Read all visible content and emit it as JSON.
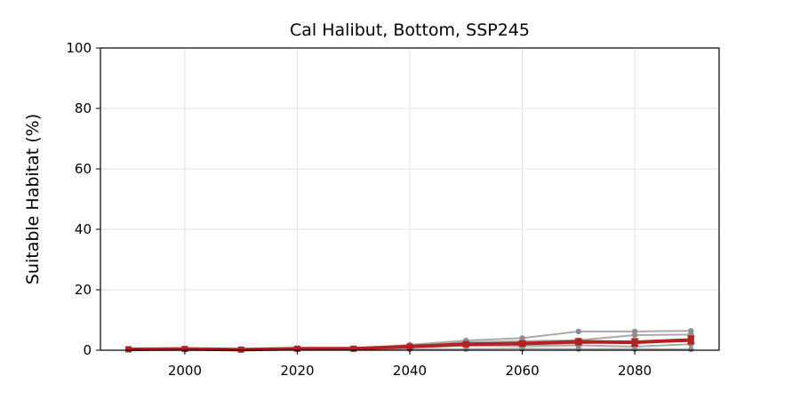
{
  "chart_data": {
    "type": "line",
    "title": "Cal Halibut, Bottom, SSP245",
    "xlabel": "",
    "ylabel": "Suitable Habitat (%)",
    "xlim": [
      1985,
      2095
    ],
    "ylim": [
      0,
      100
    ],
    "xticks": [
      2000,
      2020,
      2040,
      2060,
      2080
    ],
    "yticks": [
      0,
      20,
      40,
      60,
      80,
      100
    ],
    "grid": true,
    "x": [
      1990,
      2000,
      2010,
      2020,
      2030,
      2040,
      2050,
      2060,
      2070,
      2080,
      2090
    ],
    "ensemble_color": "#a9a9a9",
    "ensemble_marker_color": "#8c8c8c",
    "mean_color": "#b22222",
    "ensemble": [
      {
        "values": [
          0.3,
          0.4,
          0.2,
          0.5,
          0.5,
          1.8,
          3.2,
          4.0,
          6.2,
          6.2,
          6.4
        ]
      },
      {
        "values": [
          0.3,
          0.4,
          0.2,
          0.5,
          0.5,
          1.5,
          2.6,
          3.0,
          3.3,
          5.0,
          5.2
        ]
      },
      {
        "values": [
          0.3,
          0.4,
          0.2,
          0.5,
          0.5,
          1.2,
          2.0,
          2.0,
          2.3,
          2.8,
          3.0
        ]
      },
      {
        "values": [
          0.3,
          0.4,
          0.2,
          0.5,
          0.5,
          0.9,
          1.5,
          1.4,
          1.6,
          1.2,
          2.0
        ]
      },
      {
        "values": [
          0.3,
          0.4,
          0.2,
          0.4,
          0.4,
          0.3,
          0.4,
          0.5,
          0.4,
          0.4,
          0.3
        ]
      }
    ],
    "mean": {
      "values": [
        0.3,
        0.4,
        0.2,
        0.5,
        0.5,
        1.2,
        2.0,
        2.2,
        2.8,
        2.6,
        3.4
      ]
    },
    "mean_errors": [
      0,
      0,
      0,
      0,
      0,
      0.3,
      0.6,
      0.8,
      0.9,
      1.1,
      1.2
    ]
  }
}
